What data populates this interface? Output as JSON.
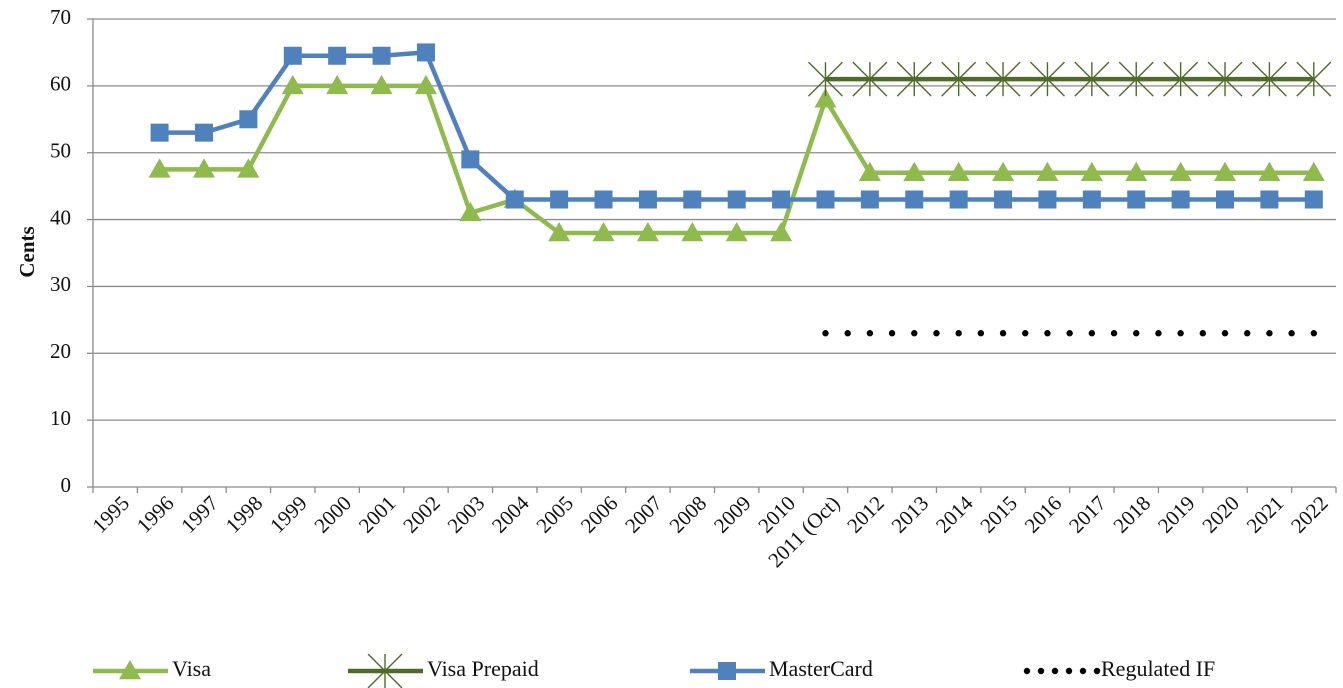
{
  "chart_data": {
    "type": "line",
    "ylabel": "Cents",
    "ylim": [
      0,
      70
    ],
    "yticks": [
      0,
      10,
      20,
      30,
      40,
      50,
      60,
      70
    ],
    "grid": "horizontal",
    "legend_position": "bottom",
    "categories": [
      "1995",
      "1996",
      "1997",
      "1998",
      "1999",
      "2000",
      "2001",
      "2002",
      "2003",
      "2004",
      "2005",
      "2006",
      "2007",
      "2008",
      "2009",
      "2010",
      "2011 (Oct)",
      "2012",
      "2013",
      "2014",
      "2015",
      "2016",
      "2017",
      "2018",
      "2019",
      "2020",
      "2021",
      "2022"
    ],
    "series": [
      {
        "name": "Visa",
        "color": "#8fba4e",
        "marker": "triangle",
        "line": "solid",
        "values": [
          null,
          47.5,
          47.5,
          47.5,
          60,
          60,
          60,
          60,
          41,
          43,
          38,
          38,
          38,
          38,
          38,
          38,
          58,
          47,
          47,
          47,
          47,
          47,
          47,
          47,
          47,
          47,
          47,
          47
        ]
      },
      {
        "name": "Visa Prepaid",
        "color": "#4f6b28",
        "marker": "asterisk",
        "line": "solid",
        "values": [
          null,
          null,
          null,
          null,
          null,
          null,
          null,
          null,
          null,
          null,
          null,
          null,
          null,
          null,
          null,
          null,
          61,
          61,
          61,
          61,
          61,
          61,
          61,
          61,
          61,
          61,
          61,
          61
        ]
      },
      {
        "name": "MasterCard",
        "color": "#4f81bd",
        "marker": "square",
        "line": "solid",
        "values": [
          null,
          53,
          53,
          55,
          64.5,
          64.5,
          64.5,
          65,
          49,
          43,
          43,
          43,
          43,
          43,
          43,
          43,
          43,
          43,
          43,
          43,
          43,
          43,
          43,
          43,
          43,
          43,
          43,
          43
        ]
      },
      {
        "name": "Regulated IF",
        "color": "#000000",
        "marker": "none",
        "line": "dotted",
        "values": [
          null,
          null,
          null,
          null,
          null,
          null,
          null,
          null,
          null,
          null,
          null,
          null,
          null,
          null,
          null,
          null,
          23,
          23,
          23,
          23,
          23,
          23,
          23,
          23,
          23,
          23,
          23,
          23
        ]
      }
    ]
  }
}
